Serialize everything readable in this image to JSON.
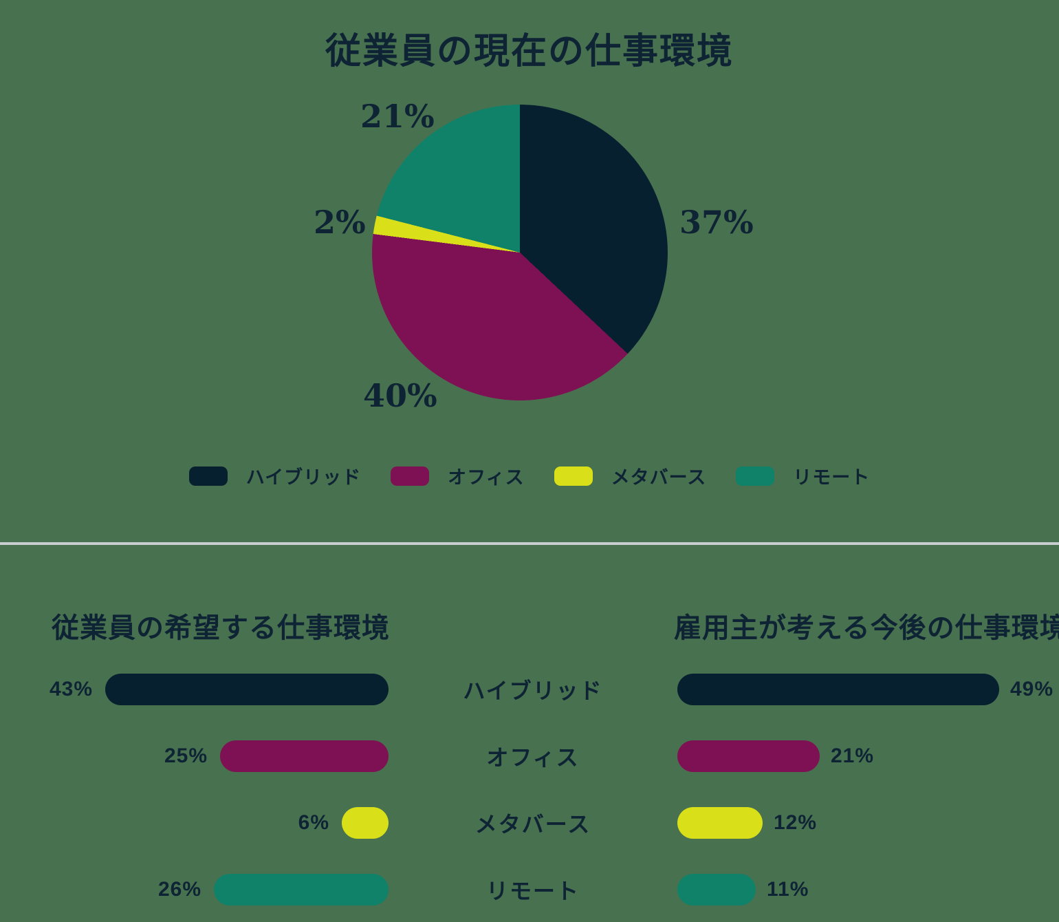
{
  "page": {
    "background_color": "#48714f",
    "text_color": "#0e2435",
    "divider_color": "#c8cdd0"
  },
  "chart_data": [
    {
      "type": "pie",
      "title": "従業員の現在の仕事環境",
      "categories": [
        "ハイブリッド",
        "オフィス",
        "メタバース",
        "リモート"
      ],
      "values": [
        37,
        40,
        2,
        21
      ],
      "labels": [
        "37%",
        "40%",
        "2%",
        "21%"
      ],
      "colors": [
        "#07202f",
        "#7e1153",
        "#d9e019",
        "#108269"
      ],
      "start_angle": "12-oclock",
      "direction": "clockwise",
      "legend_position": "bottom"
    },
    {
      "type": "bar",
      "title": "従業員の希望する仕事環境",
      "orientation": "horizontal",
      "bar_alignment": "right",
      "value_label_position": "left-of-bar",
      "categories": [
        "ハイブリッド",
        "オフィス",
        "メタバース",
        "リモート"
      ],
      "values": [
        43,
        25,
        6,
        26
      ],
      "labels": [
        "43%",
        "25%",
        "6%",
        "26%"
      ],
      "xlim": [
        0,
        49
      ],
      "grid": false
    },
    {
      "type": "bar",
      "title": "雇用主が考える今後の仕事環境",
      "orientation": "horizontal",
      "bar_alignment": "left",
      "value_label_position": "right-of-bar",
      "categories": [
        "ハイブリッド",
        "オフィス",
        "メタバース",
        "リモート"
      ],
      "values": [
        49,
        21,
        12,
        11
      ],
      "labels": [
        "49%",
        "21%",
        "12%",
        "11%"
      ],
      "xlim": [
        0,
        49
      ],
      "grid": false
    }
  ]
}
